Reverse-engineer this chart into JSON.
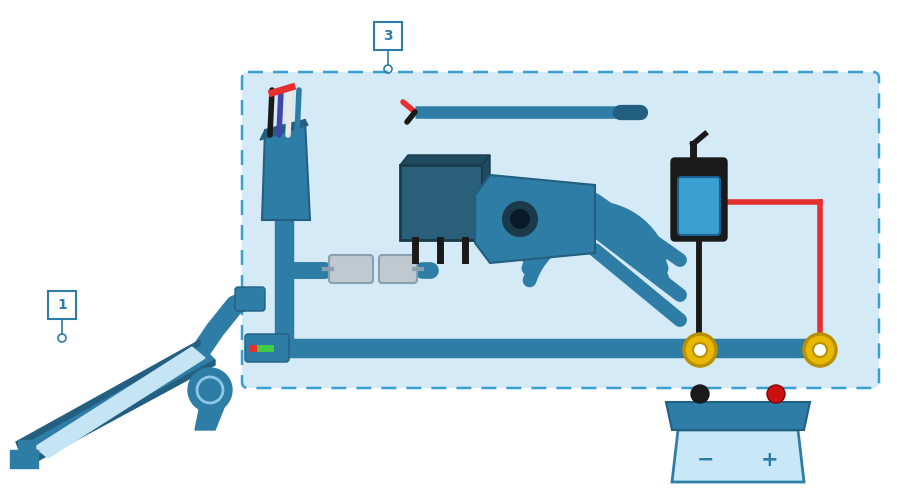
{
  "bg": "#ffffff",
  "box_bg": "#d4eaf7",
  "box_edge": "#3a9fd1",
  "dk": "#2e7da6",
  "dk2": "#235f80",
  "red": "#e63030",
  "black": "#1a1a1a",
  "gold": "#e8b800",
  "gray_light": "#cccccc",
  "gray_mid": "#999999",
  "bat_light": "#c8e8f8",
  "bat_body": "#2e7da6",
  "label_fg": "#2e7da6",
  "label_bg": "#ffffff",
  "wire_blue_dk": "#2e7da6",
  "wire_black": "#111111",
  "wire_white": "#e8e8e8",
  "wire_purple": "#4444aa",
  "fuse_blue": "#3a9fd1",
  "fuse_black": "#111111"
}
